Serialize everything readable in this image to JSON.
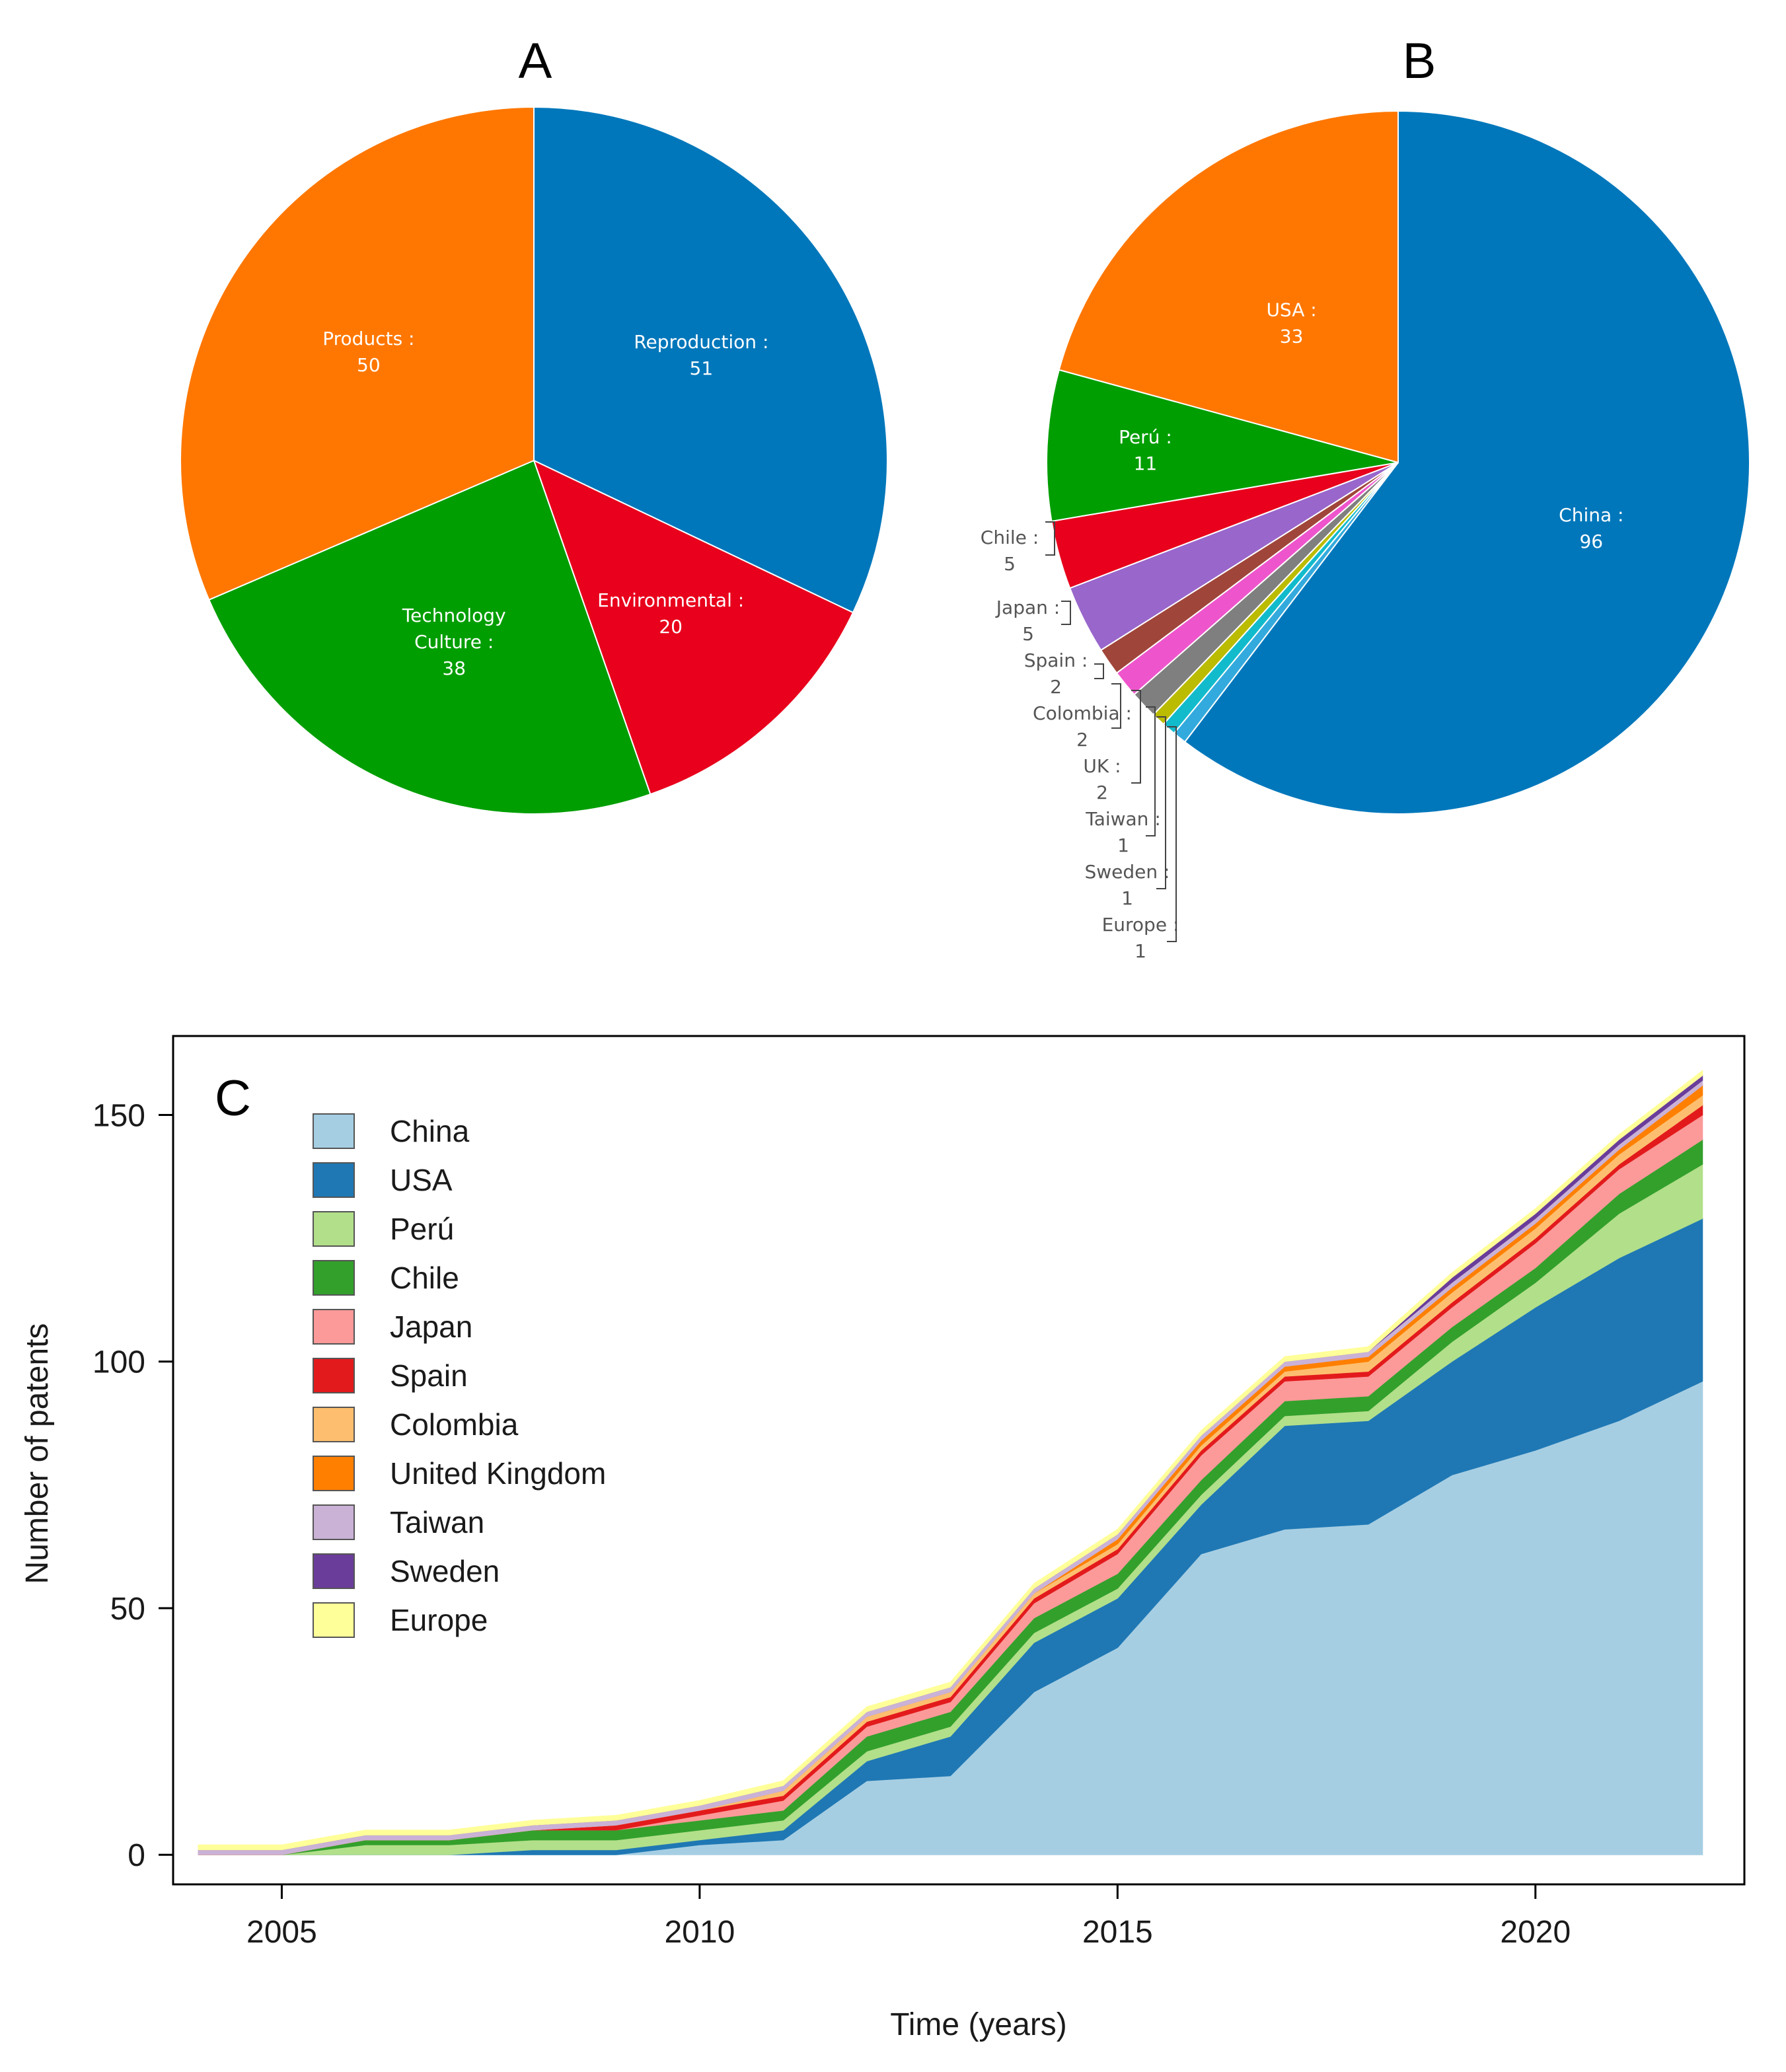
{
  "chart_data": [
    {
      "type": "pie",
      "panel_label": "A",
      "slices": [
        {
          "label": "Reproduction",
          "value": 51,
          "color": "#0077bb"
        },
        {
          "label": "Environmental",
          "value": 20,
          "color": "#e8001c"
        },
        {
          "label": "Technology Culture",
          "value": 38,
          "color": "#009e00"
        },
        {
          "label": "Products",
          "value": 50,
          "color": "#ff7700"
        }
      ]
    },
    {
      "type": "pie",
      "panel_label": "B",
      "slices": [
        {
          "label": "China",
          "value": 96,
          "color": "#0077bb"
        },
        {
          "label": "Europe",
          "value": 1,
          "color": "#33aadd"
        },
        {
          "label": "Sweden",
          "value": 1,
          "color": "#11bbcc"
        },
        {
          "label": "Taiwan",
          "value": 1,
          "color": "#bbbb00"
        },
        {
          "label": "UK",
          "value": 2,
          "color": "#7f7f7f"
        },
        {
          "label": "Colombia",
          "value": 2,
          "color": "#ee55cc"
        },
        {
          "label": "Spain",
          "value": 2,
          "color": "#a0453a"
        },
        {
          "label": "Japan",
          "value": 5,
          "color": "#9966cc"
        },
        {
          "label": "Chile",
          "value": 5,
          "color": "#e8001c"
        },
        {
          "label": "Perú",
          "value": 11,
          "color": "#009e00"
        },
        {
          "label": "USA",
          "value": 33,
          "color": "#ff7700"
        }
      ]
    },
    {
      "type": "area",
      "panel_label": "C",
      "xlabel": "Time (years)",
      "ylabel": "Number of patents",
      "xlim": [
        2003.7,
        2022.5
      ],
      "ylim": [
        -6,
        166
      ],
      "xticks": [
        2005,
        2010,
        2015,
        2020
      ],
      "yticks": [
        0,
        50,
        100,
        150
      ],
      "x": [
        2004,
        2005,
        2006,
        2007,
        2008,
        2009,
        2010,
        2011,
        2012,
        2013,
        2014,
        2015,
        2016,
        2017,
        2018,
        2019,
        2020,
        2021,
        2022
      ],
      "series": [
        {
          "name": "China",
          "color": "#a6cee3",
          "values": [
            0,
            0,
            0,
            0,
            0,
            0,
            2,
            3,
            15,
            16,
            33,
            42,
            61,
            66,
            67,
            77,
            82,
            88,
            96
          ]
        },
        {
          "name": "USA",
          "color": "#1f78b4",
          "values": [
            0,
            0,
            0,
            0,
            1,
            1,
            1,
            2,
            4,
            8,
            10,
            10,
            10,
            21,
            21,
            23,
            29,
            33,
            33
          ]
        },
        {
          "name": "Perú",
          "color": "#b2df8a",
          "values": [
            0,
            0,
            2,
            2,
            2,
            2,
            2,
            2,
            2,
            2,
            2,
            2,
            2,
            2,
            2,
            4,
            5,
            9,
            11
          ]
        },
        {
          "name": "Chile",
          "color": "#33a02c",
          "values": [
            0,
            0,
            1,
            1,
            2,
            2,
            2,
            2,
            3,
            3,
            3,
            3,
            3,
            3,
            3,
            3,
            3,
            4,
            5
          ]
        },
        {
          "name": "Japan",
          "color": "#fb9a99",
          "values": [
            0,
            0,
            0,
            0,
            0,
            0,
            1,
            2,
            2,
            2,
            3,
            4,
            5,
            4,
            4,
            4,
            5,
            5,
            5
          ]
        },
        {
          "name": "Spain",
          "color": "#e31a1c",
          "values": [
            0,
            0,
            0,
            0,
            0,
            1,
            1,
            1,
            1,
            1,
            1,
            1,
            1,
            1,
            1,
            1,
            1,
            1,
            2
          ]
        },
        {
          "name": "Colombia",
          "color": "#fdbf6f",
          "values": [
            0,
            0,
            0,
            0,
            0,
            0,
            0,
            1,
            1,
            1,
            1,
            1,
            1,
            1,
            2,
            2,
            2,
            2,
            2
          ]
        },
        {
          "name": "United Kingdom",
          "color": "#ff7f00",
          "values": [
            0,
            0,
            0,
            0,
            0,
            0,
            0,
            0,
            0,
            0,
            0,
            1,
            1,
            1,
            1,
            1,
            1,
            1,
            2
          ]
        },
        {
          "name": "Taiwan",
          "color": "#cab2d6",
          "values": [
            1,
            1,
            1,
            1,
            1,
            1,
            1,
            1,
            1,
            1,
            1,
            1,
            1,
            1,
            1,
            1,
            1,
            1,
            1
          ]
        },
        {
          "name": "Sweden",
          "color": "#6a3d9a",
          "values": [
            0,
            0,
            0,
            0,
            0,
            0,
            0,
            0,
            0,
            0,
            0,
            0,
            0,
            0,
            0,
            1,
            1,
            1,
            1
          ]
        },
        {
          "name": "Europe",
          "color": "#ffff99",
          "values": [
            1,
            1,
            1,
            1,
            1,
            1,
            1,
            1,
            1,
            1,
            1,
            1,
            1,
            1,
            1,
            1,
            1,
            1,
            1
          ]
        }
      ]
    }
  ]
}
